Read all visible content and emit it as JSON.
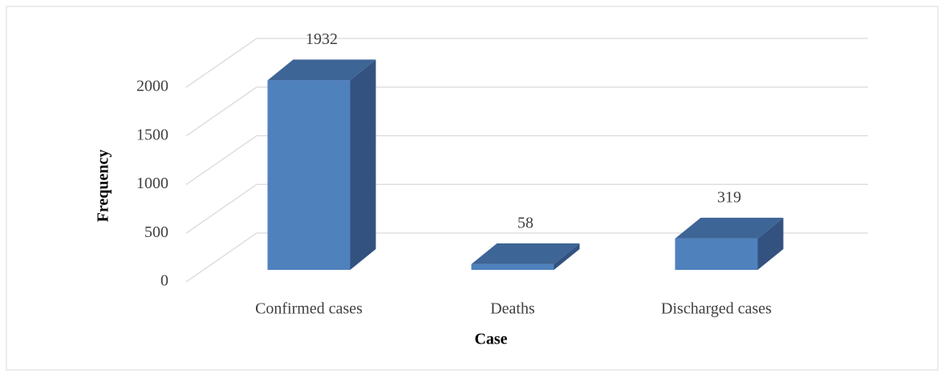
{
  "chart_data": {
    "type": "bar3d",
    "categories": [
      "Confirmed cases",
      "Deaths",
      "Discharged cases"
    ],
    "values": [
      1932,
      58,
      319
    ],
    "color": "#4f81bd",
    "ylim": [
      0,
      2000
    ],
    "yticks": [
      0,
      500,
      1000,
      1500,
      2000
    ],
    "grid": true,
    "xlabel": "Case",
    "ylabel": "Frequency"
  }
}
